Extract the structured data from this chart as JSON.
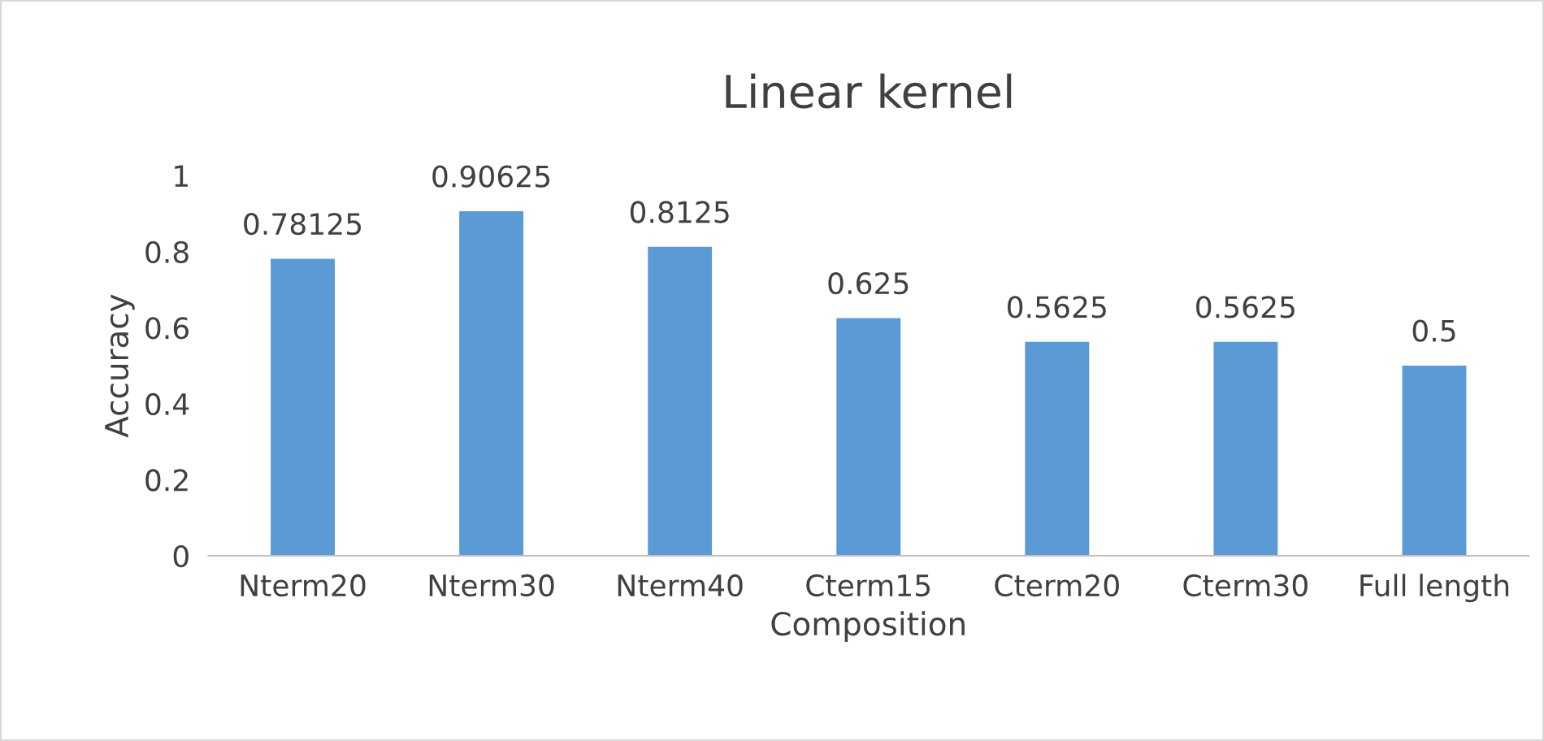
{
  "chart_data": {
    "type": "bar",
    "title": "Linear kernel",
    "xlabel": "Composition",
    "ylabel": "Accuracy",
    "categories": [
      "Nterm20",
      "Nterm30",
      "Nterm40",
      "Cterm15",
      "Cterm20",
      "Cterm30",
      "Full length"
    ],
    "values": [
      0.78125,
      0.90625,
      0.8125,
      0.625,
      0.5625,
      0.5625,
      0.5
    ],
    "color": "#5b9bd5",
    "ylim": [
      0,
      1
    ],
    "yticks": [
      0,
      0.2,
      0.4,
      0.6,
      0.8,
      1
    ],
    "grid": false,
    "data_labels": true
  }
}
